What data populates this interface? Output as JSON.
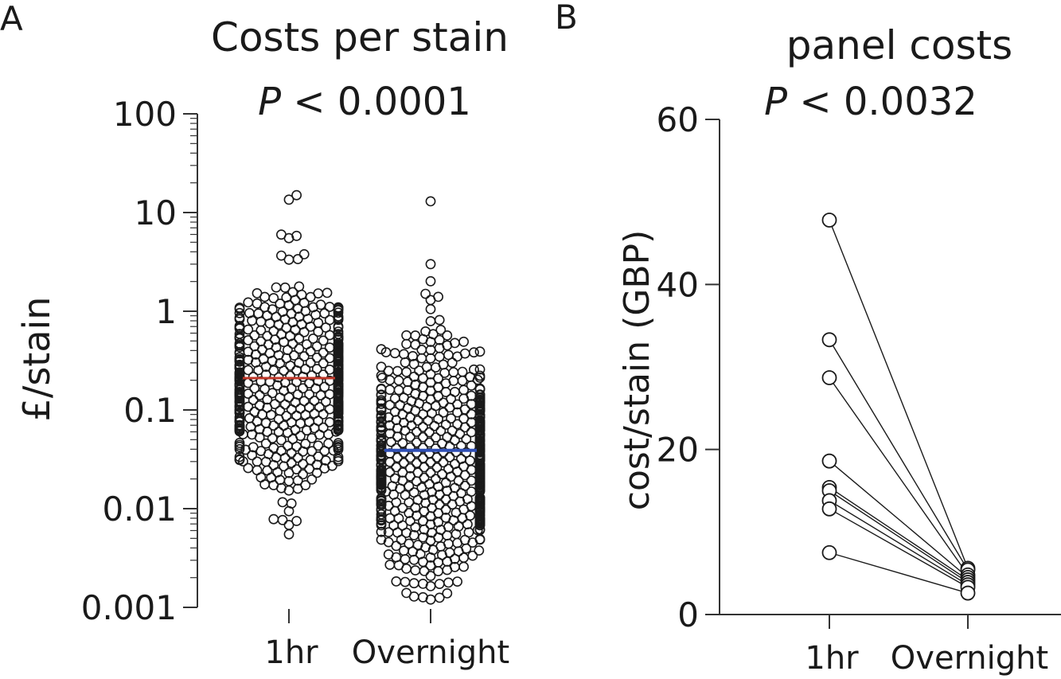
{
  "chart_data": [
    {
      "type": "scatter",
      "panel_label": "A",
      "title": "Costs per stain",
      "subtitle_p": "P",
      "subtitle_rest": " < 0.0001",
      "ylabel": "£/stain",
      "xlabel": "",
      "yscale": "log",
      "ylim": [
        0.001,
        100
      ],
      "yticks": [
        "0.001",
        "0.01",
        "0.1",
        "1",
        "10",
        "100"
      ],
      "categories": [
        "1hr",
        "Overnight"
      ],
      "medians": [
        0.21,
        0.039
      ],
      "median_colors": [
        "#c0392b",
        "#2f4fb5"
      ],
      "groups": [
        {
          "name": "1hr",
          "n": 520,
          "min": 0.0055,
          "max": 15,
          "log_mean": -0.75,
          "log_sd": 0.55,
          "extra_points": [
            15,
            13.5,
            5.8,
            5.5,
            0.0055,
            0.0075
          ]
        },
        {
          "name": "Overnight",
          "n": 620,
          "min": 0.0012,
          "max": 13,
          "log_mean": -1.5,
          "log_sd": 0.6,
          "extra_points": [
            13,
            3.0,
            1.4,
            1.3,
            0.0012,
            0.0014
          ]
        }
      ]
    },
    {
      "type": "line",
      "panel_label": "B",
      "title": "panel costs",
      "subtitle_p": "P",
      "subtitle_rest": " < 0.0032",
      "ylabel": "cost/stain (GBP)",
      "xlabel": "",
      "ylim": [
        0,
        60
      ],
      "yticks": [
        "0",
        "20",
        "40",
        "60"
      ],
      "categories": [
        "1hr",
        "Overnight"
      ],
      "pairs": [
        [
          47.8,
          5.6
        ],
        [
          33.3,
          5.4
        ],
        [
          28.7,
          4.8
        ],
        [
          18.6,
          4.5
        ],
        [
          15.4,
          4.2
        ],
        [
          15.0,
          3.9
        ],
        [
          13.8,
          3.6
        ],
        [
          12.8,
          3.3
        ],
        [
          7.5,
          2.6
        ]
      ]
    }
  ]
}
